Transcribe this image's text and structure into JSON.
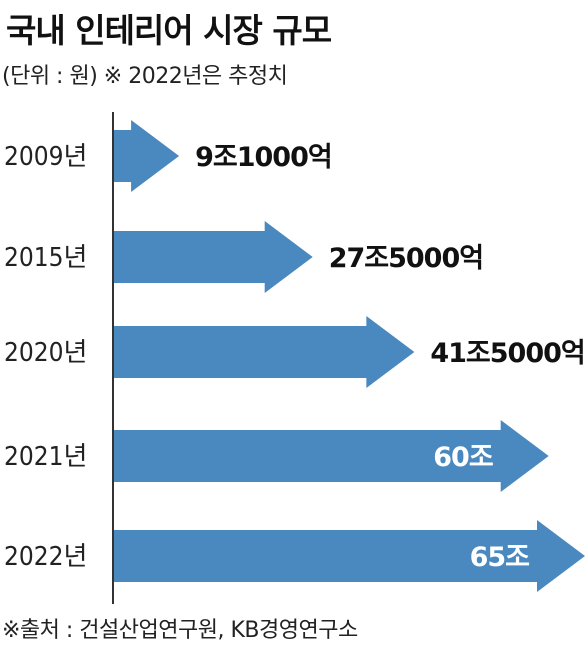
{
  "title": "국내 인테리어 시장 규모",
  "subtitle": "(단위 : 원)  ※ 2022년은 추정치",
  "source": "※출처 : 건설산업연구원, KB경영연구소",
  "colors": {
    "arrow": "#4a88c0",
    "axis": "#333333"
  },
  "chart_data": {
    "type": "bar",
    "orientation": "horizontal",
    "categories": [
      "2009년",
      "2015년",
      "2020년",
      "2021년",
      "2022년"
    ],
    "values": [
      9.1,
      27.5,
      41.5,
      60,
      65
    ],
    "value_unit": "조원",
    "value_labels": [
      "9조1000억",
      "27조5000억",
      "41조5000억",
      "60조",
      "65조"
    ],
    "label_inside": [
      false,
      false,
      false,
      true,
      true
    ],
    "title": "국내 인테리어 시장 규모",
    "xlabel": "",
    "ylabel": ""
  }
}
